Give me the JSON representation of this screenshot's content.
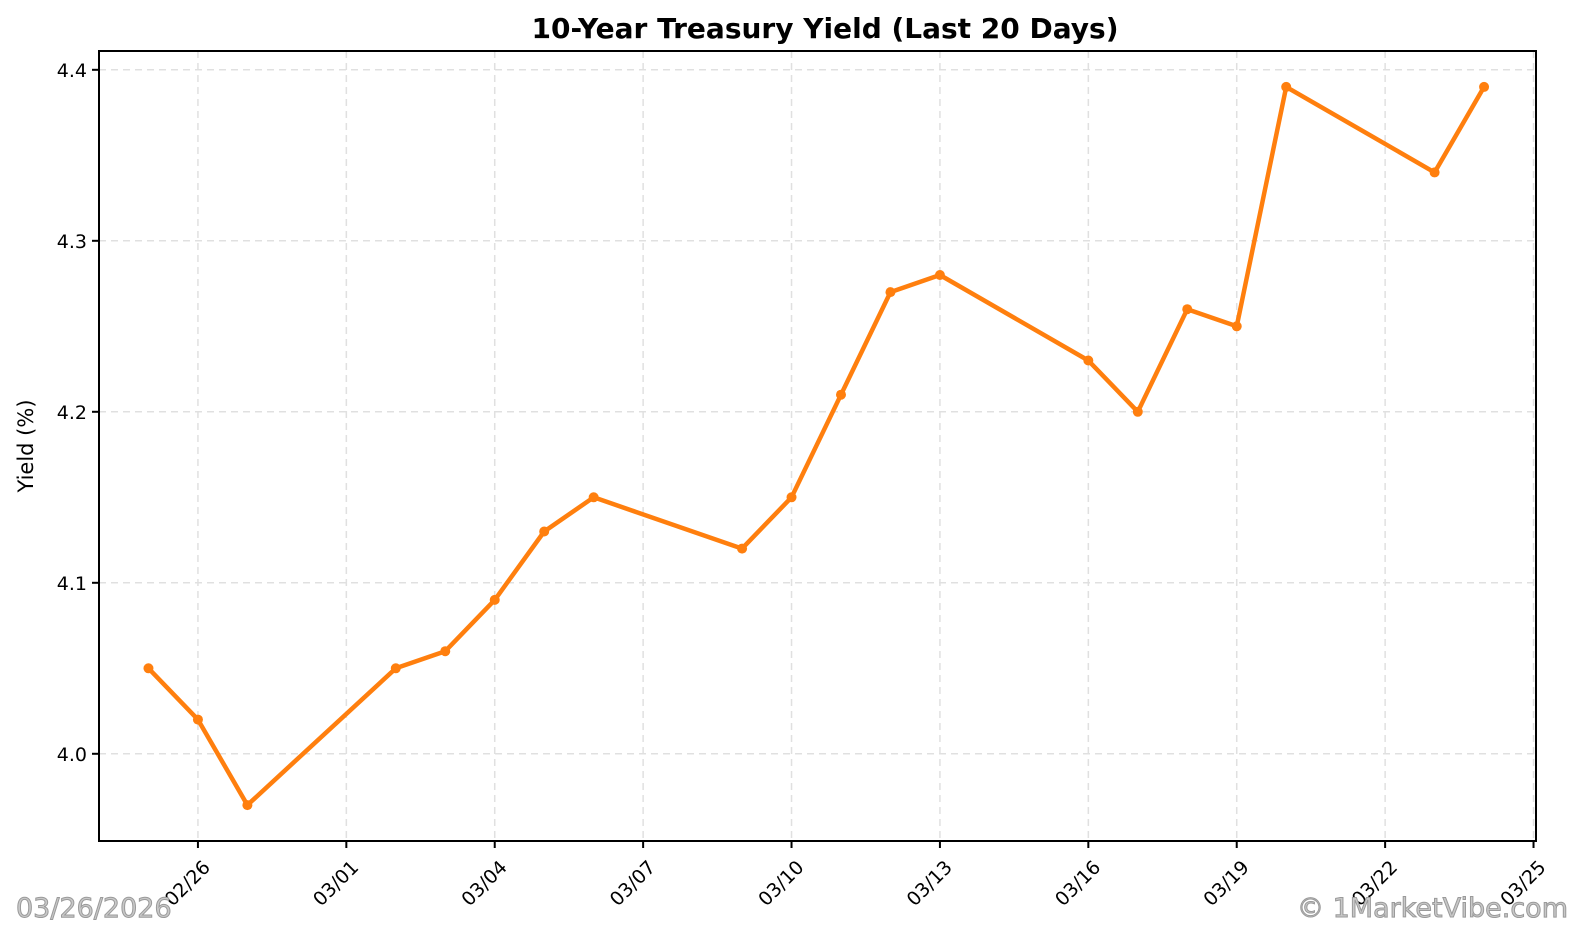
{
  "chart_data": {
    "type": "line",
    "title": "10-Year Treasury Yield (Last 20 Days)",
    "xlabel": "",
    "ylabel": "Yield (%)",
    "x": [
      "02/25",
      "02/26",
      "02/27",
      "03/02",
      "03/03",
      "03/04",
      "03/05",
      "03/06",
      "03/09",
      "03/10",
      "03/11",
      "03/12",
      "03/13",
      "03/16",
      "03/17",
      "03/18",
      "03/19",
      "03/20",
      "03/23",
      "03/24"
    ],
    "x_day_offsets": [
      -1,
      0,
      1,
      4,
      5,
      6,
      7,
      8,
      11,
      12,
      13,
      14,
      15,
      18,
      19,
      20,
      21,
      22,
      25,
      26
    ],
    "series": [
      {
        "name": "10-Year Treasury Yield",
        "color": "#ff7f0e",
        "values": [
          4.05,
          4.02,
          3.97,
          4.05,
          4.06,
          4.09,
          4.13,
          4.15,
          4.12,
          4.15,
          4.21,
          4.27,
          4.28,
          4.23,
          4.2,
          4.26,
          4.25,
          4.39,
          4.34,
          4.39
        ]
      }
    ],
    "xticks": [
      {
        "label": "02/26",
        "day": 0
      },
      {
        "label": "03/01",
        "day": 3
      },
      {
        "label": "03/04",
        "day": 6
      },
      {
        "label": "03/07",
        "day": 9
      },
      {
        "label": "03/10",
        "day": 12
      },
      {
        "label": "03/13",
        "day": 15
      },
      {
        "label": "03/16",
        "day": 18
      },
      {
        "label": "03/19",
        "day": 21
      },
      {
        "label": "03/22",
        "day": 24
      },
      {
        "label": "03/25",
        "day": 27
      }
    ],
    "yticks": [
      4.0,
      4.1,
      4.2,
      4.3,
      4.4
    ],
    "ylim": [
      3.949,
      4.411
    ],
    "xlim_days": [
      -2.0,
      27.05
    ],
    "grid": true,
    "legend": null
  },
  "watermark": {
    "date": "03/26/2026",
    "copyright": "© 1MarketVibe.com"
  }
}
